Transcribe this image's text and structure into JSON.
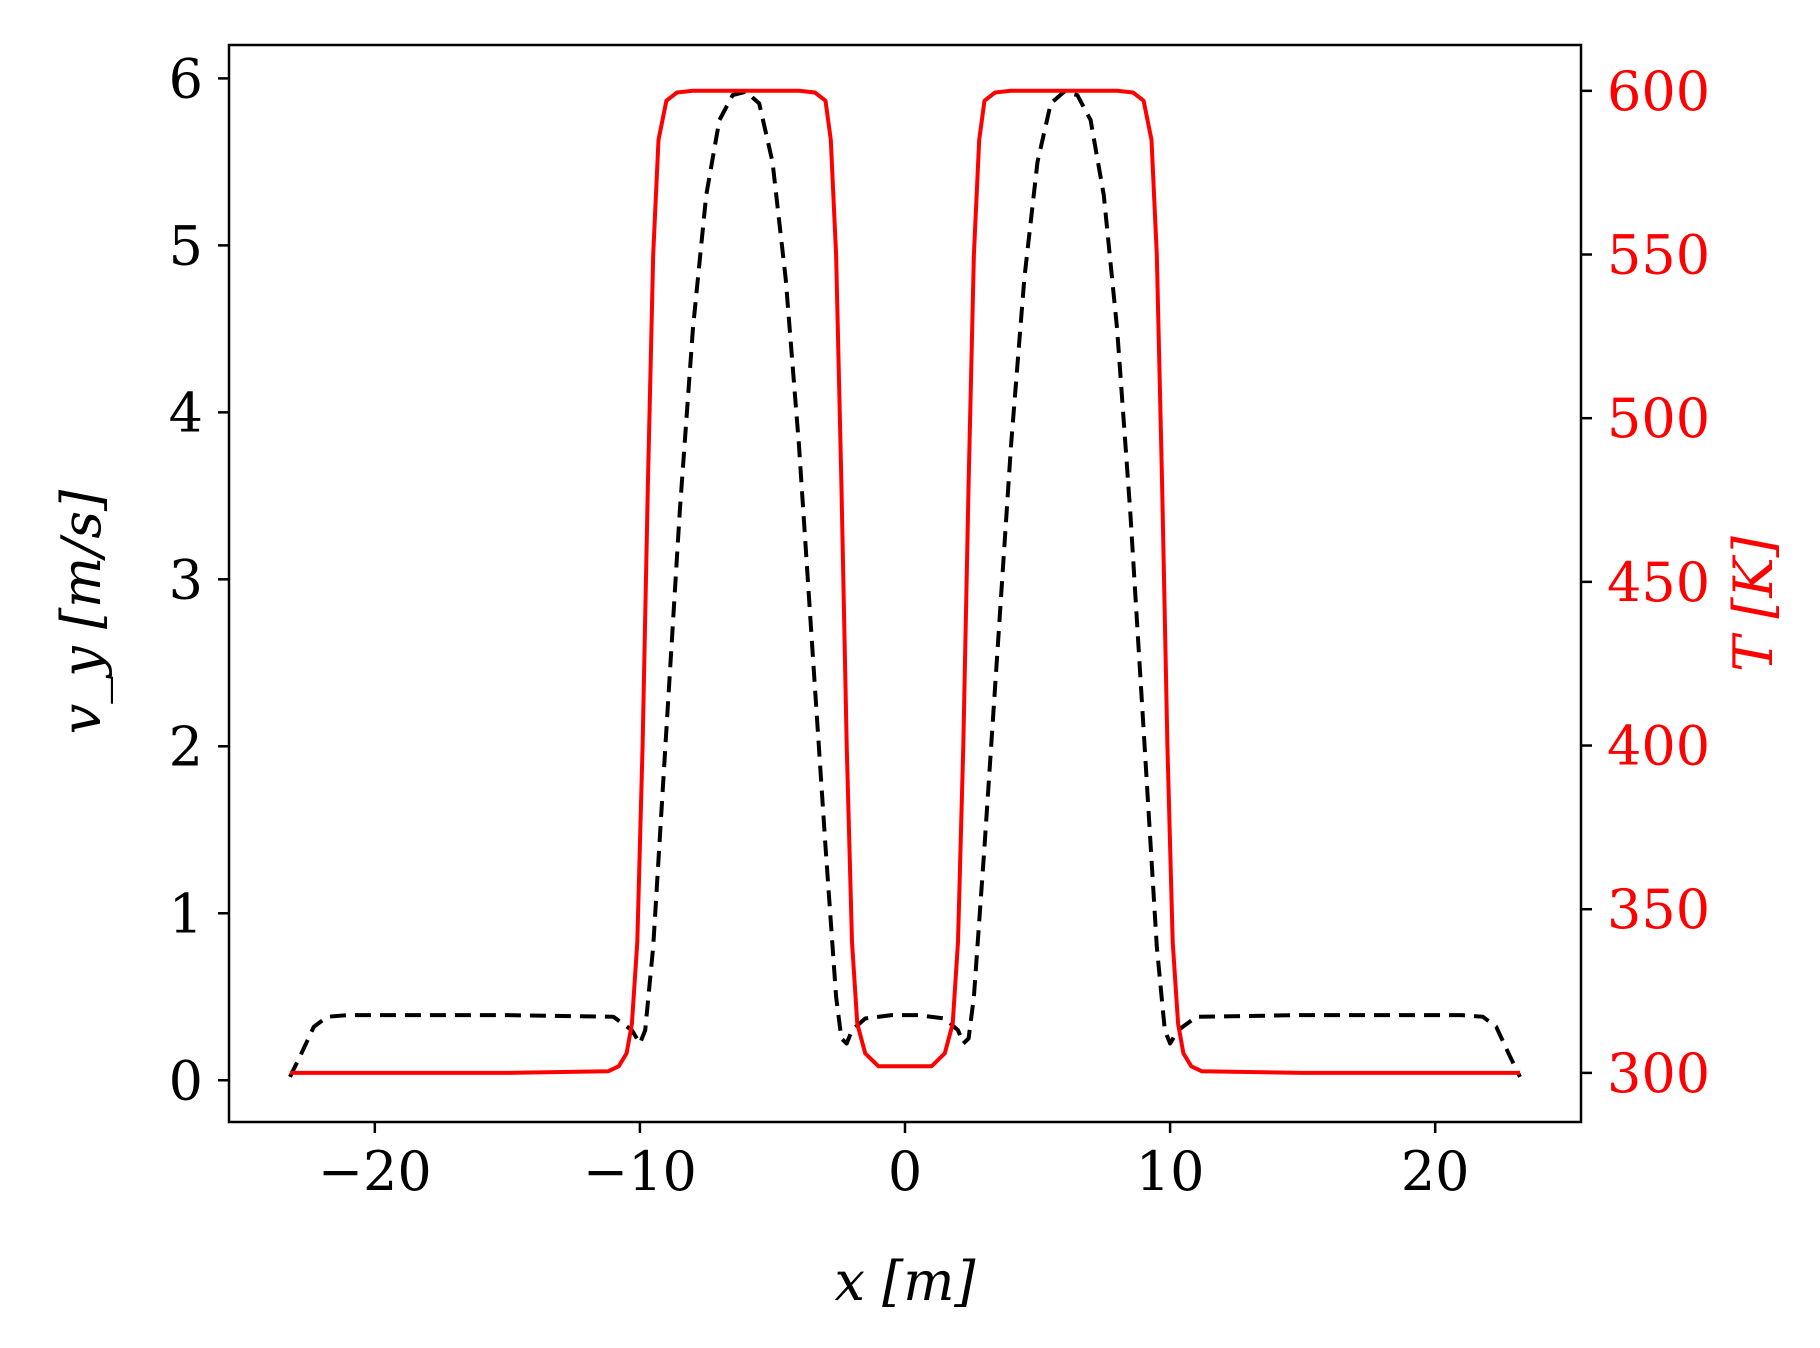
{
  "chart_data": {
    "type": "line",
    "title": "",
    "xlabel": "x [m]",
    "ylabel_left": "v_y [m/s]",
    "ylabel_right": "T [K]",
    "xlim": [
      -25.5,
      25.5
    ],
    "ylim_left": [
      -0.25,
      6.2
    ],
    "ylim_right": [
      285,
      614
    ],
    "xticks": [
      -20,
      -10,
      0,
      10,
      20
    ],
    "xtick_labels": [
      "−20",
      "−10",
      "0",
      "10",
      "20"
    ],
    "yticks_left": [
      0,
      1,
      2,
      3,
      4,
      5,
      6
    ],
    "ytick_labels_left": [
      "0",
      "1",
      "2",
      "3",
      "4",
      "5",
      "6"
    ],
    "yticks_right": [
      300,
      350,
      400,
      450,
      500,
      550,
      600
    ],
    "ytick_labels_right": [
      "300",
      "350",
      "400",
      "450",
      "500",
      "550",
      "600"
    ],
    "grid": false,
    "legend": "none",
    "colors": {
      "vy": "#000000",
      "T": "#ff0000",
      "axes": "#000000"
    },
    "series": [
      {
        "axis": "left",
        "style": "dashed",
        "color": "#000000",
        "x": [
          -23.2,
          -22.8,
          -22.3,
          -21.8,
          -21,
          -15,
          -11,
          -10.3,
          -10.0,
          -9.8,
          -9.5,
          -9.0,
          -8.5,
          -8.0,
          -7.5,
          -7.0,
          -6.5,
          -6.0,
          -5.5,
          -5.0,
          -4.5,
          -4.0,
          -3.5,
          -3.0,
          -2.6,
          -2.4,
          -2.2,
          -2.0,
          -1.5,
          -0.5,
          0.5,
          1.5,
          2.0,
          2.2,
          2.4,
          2.6,
          3.0,
          3.5,
          4.0,
          4.5,
          5.0,
          5.5,
          6.0,
          6.5,
          7.0,
          7.5,
          8.0,
          8.5,
          9.0,
          9.5,
          9.8,
          10.0,
          10.3,
          11,
          15,
          21,
          21.8,
          22.3,
          22.8,
          23.2
        ],
        "y": [
          0.02,
          0.15,
          0.32,
          0.38,
          0.39,
          0.39,
          0.38,
          0.3,
          0.22,
          0.3,
          0.8,
          2.1,
          3.4,
          4.5,
          5.3,
          5.75,
          5.9,
          5.92,
          5.85,
          5.5,
          4.8,
          3.8,
          2.6,
          1.4,
          0.5,
          0.25,
          0.22,
          0.3,
          0.37,
          0.39,
          0.39,
          0.37,
          0.3,
          0.22,
          0.25,
          0.5,
          1.4,
          2.6,
          3.8,
          4.8,
          5.5,
          5.85,
          5.92,
          5.9,
          5.75,
          5.3,
          4.5,
          3.4,
          2.1,
          0.8,
          0.3,
          0.22,
          0.3,
          0.38,
          0.39,
          0.39,
          0.38,
          0.32,
          0.15,
          0.02
        ]
      },
      {
        "axis": "right",
        "style": "solid",
        "color": "#ff0000",
        "x": [
          -23.2,
          -15,
          -11.2,
          -10.8,
          -10.5,
          -10.3,
          -10.1,
          -9.9,
          -9.7,
          -9.5,
          -9.3,
          -9.0,
          -8.6,
          -8,
          -4,
          -3.4,
          -3.0,
          -2.8,
          -2.6,
          -2.4,
          -2.2,
          -2.0,
          -1.8,
          -1.5,
          -1.0,
          1.0,
          1.5,
          1.8,
          2.0,
          2.2,
          2.4,
          2.6,
          2.8,
          3.0,
          3.4,
          4,
          8,
          8.6,
          9.0,
          9.3,
          9.5,
          9.7,
          9.9,
          10.1,
          10.3,
          10.5,
          10.8,
          11.2,
          15,
          23.2
        ],
        "y": [
          300,
          300,
          300.5,
          302,
          306,
          315,
          340,
          400,
          480,
          550,
          585,
          597,
          599.5,
          600,
          600,
          599.5,
          597,
          585,
          550,
          480,
          400,
          340,
          315,
          306,
          302,
          302,
          306,
          315,
          340,
          400,
          480,
          550,
          585,
          597,
          599.5,
          600,
          600,
          599.5,
          597,
          585,
          550,
          480,
          400,
          340,
          315,
          306,
          302,
          300.5,
          300,
          300
        ]
      }
    ]
  }
}
